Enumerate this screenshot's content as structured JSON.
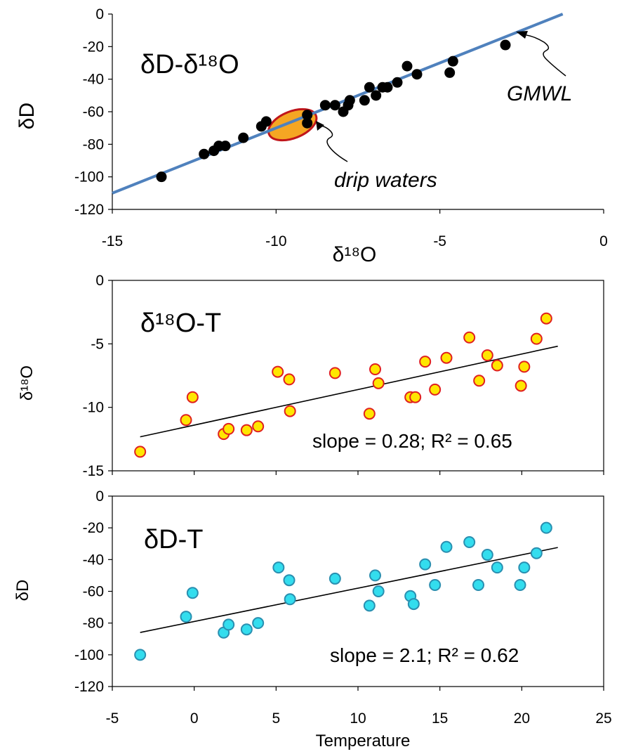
{
  "figure": {
    "colors": {
      "gmwl_line": "#4F81BD",
      "panel1_marker": "#000000",
      "drip_ellipse_fill": "#F5A623",
      "drip_ellipse_stroke": "#C0161B",
      "panel2_marker_fill": "#FFE600",
      "panel2_marker_stroke": "#E02020",
      "panel3_marker_fill": "#33DDEE",
      "panel3_marker_stroke": "#2A8FB0",
      "trend_line": "#000000"
    }
  },
  "chart_data": [
    {
      "type": "scatter",
      "title": "δD-δ¹⁸O",
      "xlabel": "δ¹⁸O",
      "ylabel": "δD",
      "xlim": [
        -15,
        0
      ],
      "ylim": [
        -120,
        0
      ],
      "xticks": [
        -15,
        -10,
        -5,
        0
      ],
      "xtick_labels": [
        "-15",
        "-10",
        "-5",
        "0"
      ],
      "yticks": [
        0,
        -20,
        -40,
        -60,
        -80,
        -100,
        -120
      ],
      "ytick_labels": [
        "0",
        "-20",
        "-40",
        "-60",
        "-80",
        "-100",
        "-120"
      ],
      "grid": false,
      "series": [
        {
          "name": "",
          "points": [
            [
              -13.5,
              -100
            ],
            [
              -12.2,
              -86
            ],
            [
              -11.9,
              -84
            ],
            [
              -11.75,
              -81
            ],
            [
              -11.55,
              -81
            ],
            [
              -11.0,
              -76
            ],
            [
              -10.45,
              -69
            ],
            [
              -10.3,
              -66
            ],
            [
              -9.05,
              -62
            ],
            [
              -9.05,
              -67
            ],
            [
              -8.5,
              -56
            ],
            [
              -8.2,
              -56
            ],
            [
              -7.95,
              -60
            ],
            [
              -7.8,
              -56
            ],
            [
              -7.75,
              -53
            ],
            [
              -7.3,
              -53
            ],
            [
              -7.15,
              -45
            ],
            [
              -6.95,
              -50
            ],
            [
              -6.75,
              -45
            ],
            [
              -6.6,
              -45
            ],
            [
              -6.3,
              -42
            ],
            [
              -6.0,
              -32
            ],
            [
              -5.7,
              -37
            ],
            [
              -4.7,
              -36
            ],
            [
              -4.6,
              -29
            ],
            [
              -3.0,
              -19
            ]
          ]
        }
      ],
      "reference_line": {
        "name": "GMWL",
        "slope": 8,
        "intercept": 10
      },
      "annotations": [
        {
          "text": "GMWL"
        },
        {
          "text": "drip waters",
          "region_center": [
            -9.5,
            -68
          ]
        }
      ]
    },
    {
      "type": "scatter",
      "title": "δ¹⁸O-T",
      "xlabel": "",
      "ylabel": "δ¹⁸O",
      "xlim": [
        -5,
        25
      ],
      "ylim": [
        -15,
        0
      ],
      "yticks": [
        0,
        -5,
        -10,
        -15
      ],
      "ytick_labels": [
        "0",
        "-5",
        "-10",
        "-15"
      ],
      "grid": false,
      "series": [
        {
          "name": "",
          "points": [
            [
              -3.3,
              -13.5
            ],
            [
              -0.5,
              -11.0
            ],
            [
              -0.1,
              -9.2
            ],
            [
              1.8,
              -12.1
            ],
            [
              2.1,
              -11.7
            ],
            [
              3.2,
              -11.8
            ],
            [
              3.9,
              -11.5
            ],
            [
              5.1,
              -7.2
            ],
            [
              5.8,
              -7.8
            ],
            [
              5.85,
              -10.3
            ],
            [
              8.6,
              -7.3
            ],
            [
              10.7,
              -10.5
            ],
            [
              11.05,
              -7.0
            ],
            [
              11.25,
              -8.1
            ],
            [
              13.2,
              -9.2
            ],
            [
              13.5,
              -9.2
            ],
            [
              14.1,
              -6.4
            ],
            [
              14.7,
              -8.6
            ],
            [
              15.4,
              -6.1
            ],
            [
              16.8,
              -4.5
            ],
            [
              17.4,
              -7.9
            ],
            [
              17.9,
              -5.9
            ],
            [
              18.5,
              -6.7
            ],
            [
              19.95,
              -8.3
            ],
            [
              20.15,
              -6.8
            ],
            [
              20.9,
              -4.6
            ],
            [
              21.5,
              -3.0
            ]
          ]
        }
      ],
      "trend_line": {
        "slope": 0.28,
        "intercept": -11.4,
        "x_range": [
          -3.3,
          22.2
        ]
      },
      "stat_label": "slope = 0.28; R² = 0.65"
    },
    {
      "type": "scatter",
      "title": "δD-T",
      "xlabel": "Temperature",
      "ylabel": "δD",
      "xlim": [
        -5,
        25
      ],
      "ylim": [
        -120,
        0
      ],
      "xticks": [
        -5,
        0,
        5,
        10,
        15,
        20,
        25
      ],
      "xtick_labels": [
        "-5",
        "0",
        "5",
        "10",
        "15",
        "20",
        "25"
      ],
      "yticks": [
        0,
        -20,
        -40,
        -60,
        -80,
        -100,
        -120
      ],
      "ytick_labels": [
        "0",
        "-20",
        "-40",
        "-60",
        "-80",
        "-100",
        "-120"
      ],
      "grid": false,
      "series": [
        {
          "name": "",
          "points": [
            [
              -3.3,
              -100
            ],
            [
              -0.5,
              -76
            ],
            [
              -0.1,
              -61
            ],
            [
              1.8,
              -86
            ],
            [
              2.1,
              -81
            ],
            [
              3.2,
              -84
            ],
            [
              3.9,
              -80
            ],
            [
              5.15,
              -45
            ],
            [
              5.8,
              -53
            ],
            [
              5.85,
              -65
            ],
            [
              8.6,
              -52
            ],
            [
              10.7,
              -69
            ],
            [
              11.05,
              -50
            ],
            [
              11.25,
              -60
            ],
            [
              13.2,
              -63
            ],
            [
              13.4,
              -68
            ],
            [
              14.1,
              -43
            ],
            [
              14.7,
              -56
            ],
            [
              15.4,
              -32
            ],
            [
              16.8,
              -29
            ],
            [
              17.35,
              -56
            ],
            [
              17.9,
              -37
            ],
            [
              18.5,
              -45
            ],
            [
              19.9,
              -56
            ],
            [
              20.15,
              -45
            ],
            [
              20.9,
              -36
            ],
            [
              21.5,
              -20
            ]
          ]
        }
      ],
      "trend_line": {
        "slope": 2.1,
        "intercept": -79,
        "x_range": [
          -3.3,
          22.2
        ]
      },
      "stat_label": "slope = 2.1; R² = 0.62"
    }
  ]
}
